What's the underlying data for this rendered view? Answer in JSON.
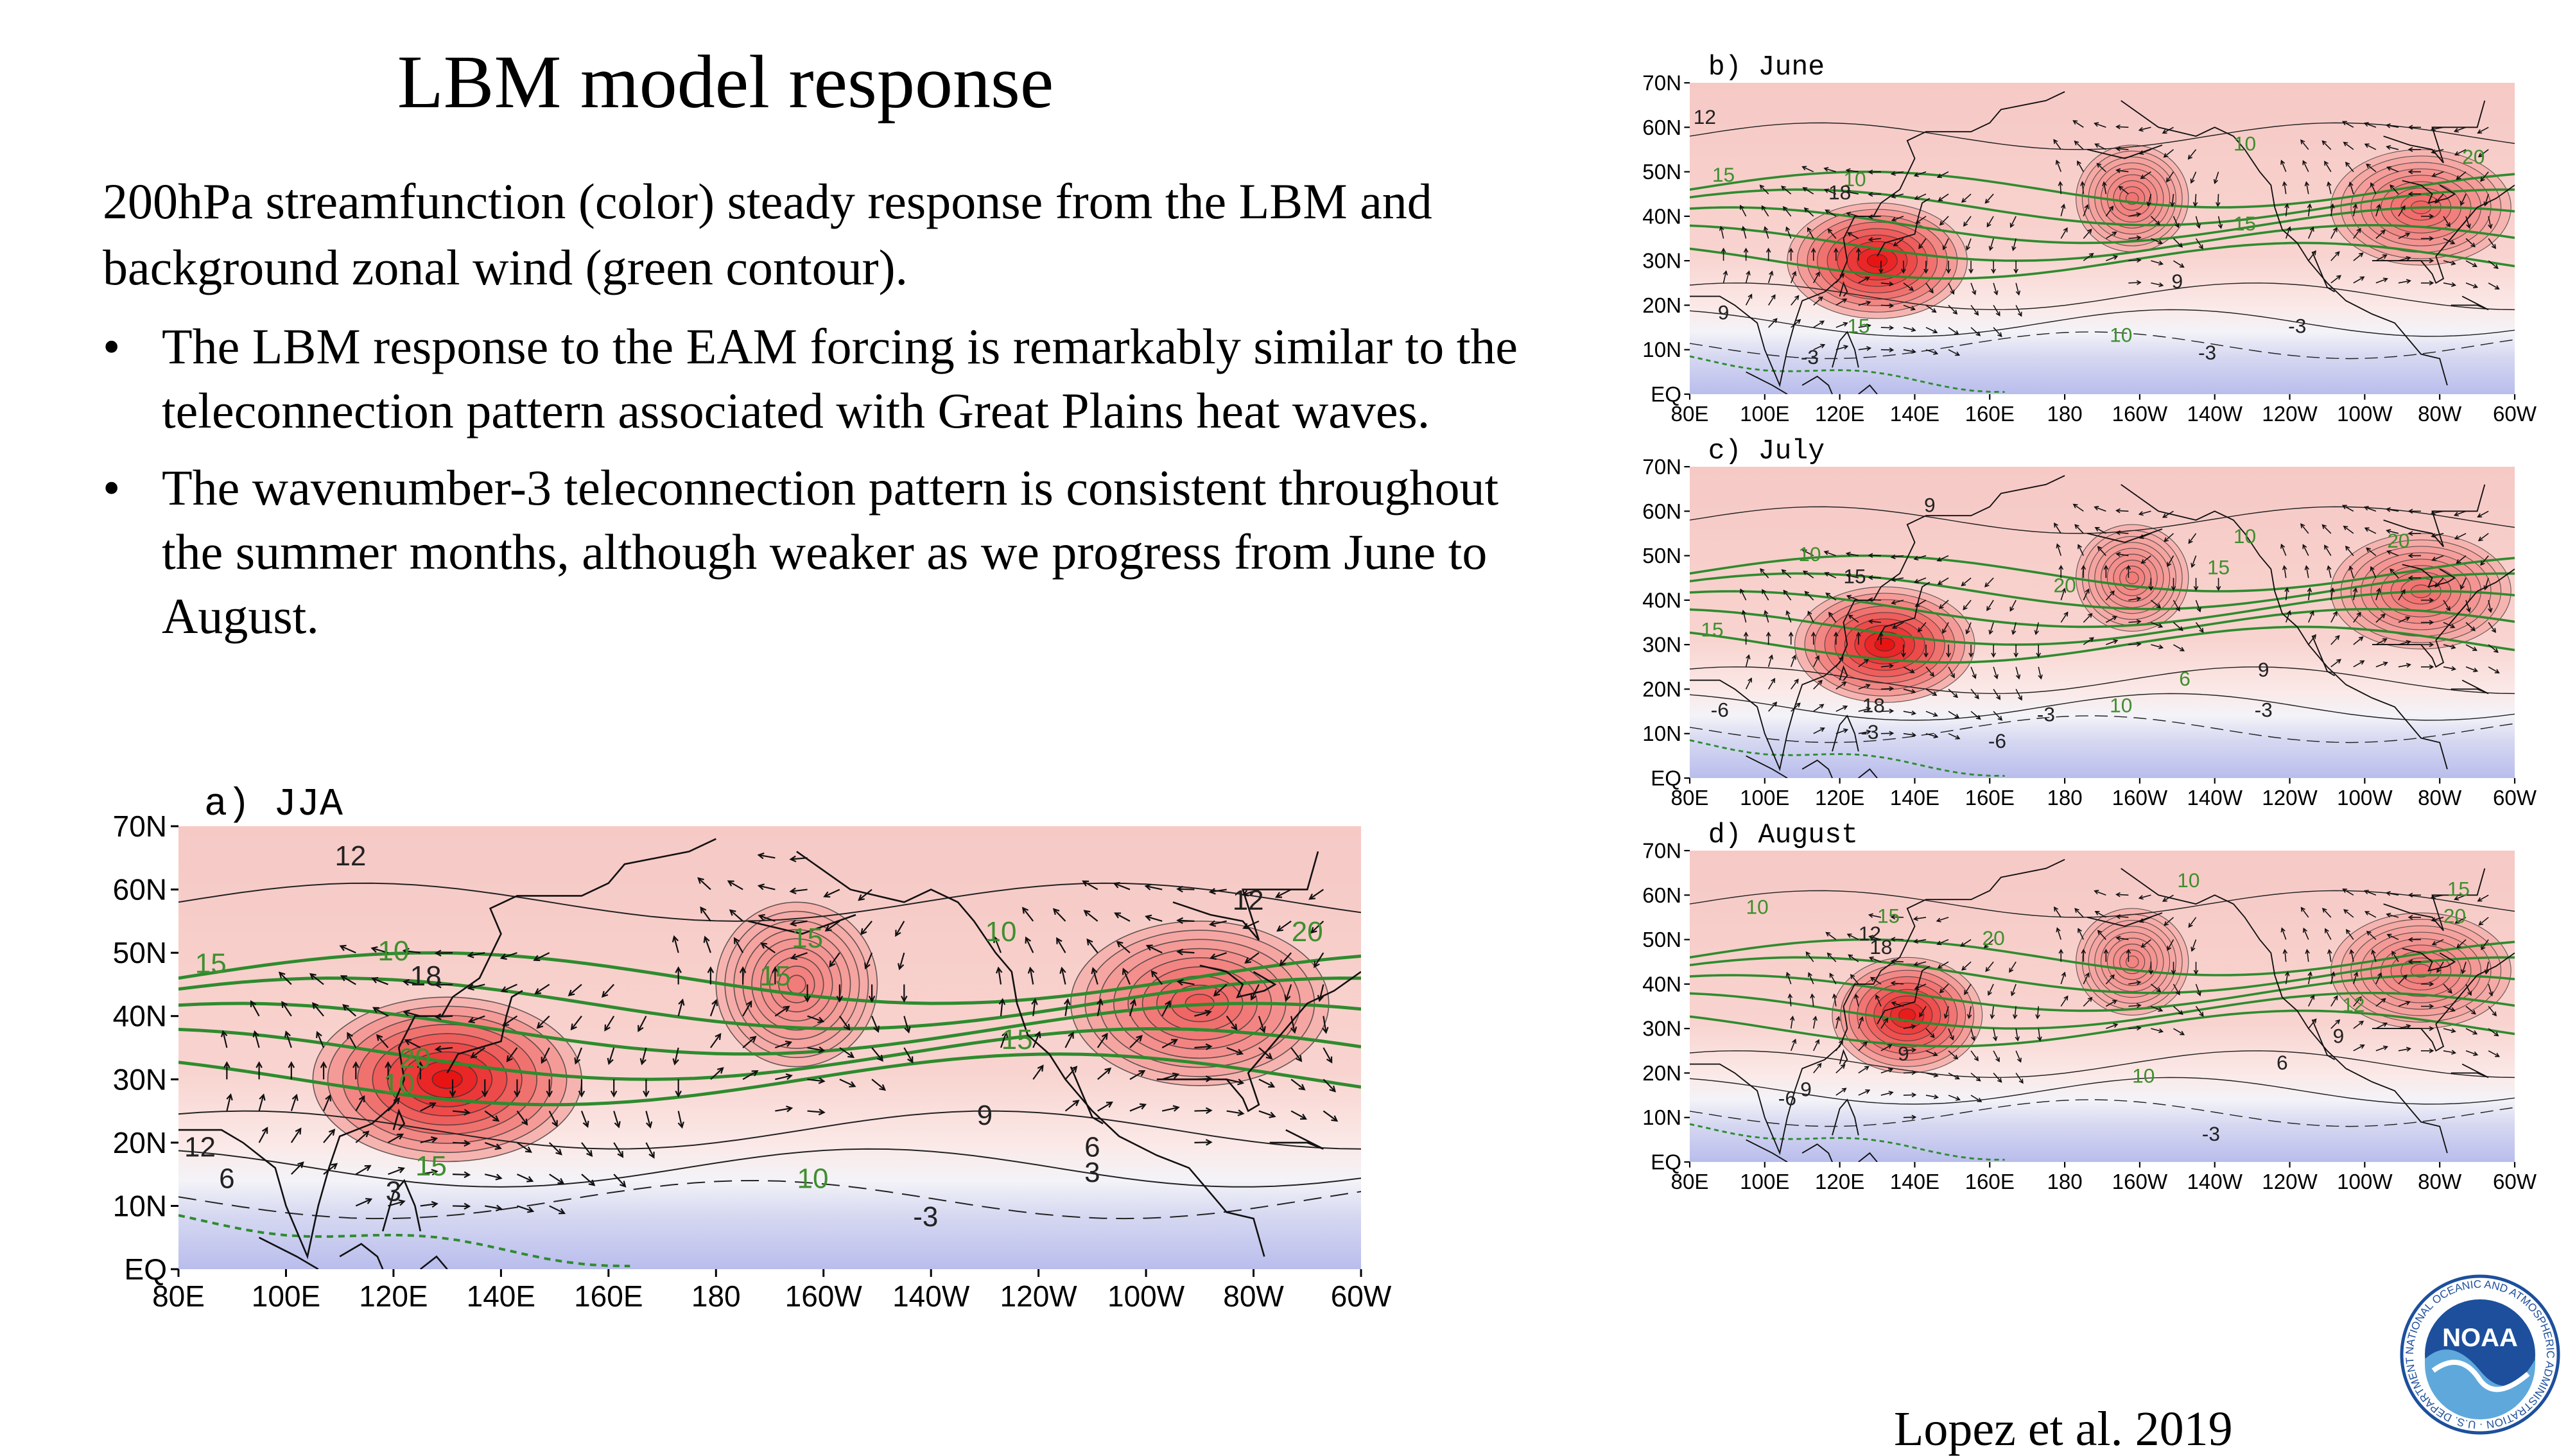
{
  "slide": {
    "title": "LBM model response",
    "lead": "200hPa streamfunction (color) steady response from the LBM and background zonal wind (green contour).",
    "bullets": [
      "The LBM response to the EAM forcing is remarkably similar to the teleconnection pattern associated with Great Plains heat waves.",
      "The wavenumber-3 teleconnection pattern is consistent throughout the summer months, although weaker as we progress from June to August."
    ],
    "bullet_glyph": "•",
    "citation": "Lopez et al. 2019",
    "logo": {
      "text": "NOAA",
      "ring_text": "NATIONAL OCEANIC AND ATMOSPHERIC ADMINISTRATION · U.S. DEPARTMENT OF COMMERCE ·",
      "icon": "noaa-logo-icon",
      "colors": [
        "#1d4f9c",
        "#5fa8dc",
        "#ffffff"
      ]
    }
  },
  "chart_data": [
    {
      "id": "a",
      "type": "heatmap",
      "label": "a) JJA",
      "x_ticks": [
        "80E",
        "100E",
        "120E",
        "140E",
        "160E",
        "180",
        "160W",
        "140W",
        "120W",
        "100W",
        "80W",
        "60W"
      ],
      "y_ticks": [
        "70N",
        "60N",
        "50N",
        "40N",
        "30N",
        "20N",
        "10N",
        "EQ"
      ],
      "xlim": [
        80,
        300
      ],
      "ylim": [
        0,
        70
      ],
      "streamfunction_centers": [
        {
          "lon": 130,
          "lat": 30,
          "amp": 1.0,
          "rx": 25,
          "ry": 13
        },
        {
          "lon": 195,
          "lat": 45,
          "amp": 0.35,
          "rx": 15,
          "ry": 13
        },
        {
          "lon": 270,
          "lat": 42,
          "amp": 0.55,
          "rx": 24,
          "ry": 13
        }
      ],
      "contour_labels": [
        {
          "text": "12",
          "lon": 112,
          "lat": 65,
          "wind": false
        },
        {
          "text": "15",
          "lon": 86,
          "lat": 48,
          "wind": true
        },
        {
          "text": "10",
          "lon": 120,
          "lat": 50,
          "wind": true
        },
        {
          "text": "18",
          "lon": 126,
          "lat": 46,
          "wind": false
        },
        {
          "text": "20",
          "lon": 124,
          "lat": 33,
          "wind": true
        },
        {
          "text": "10",
          "lon": 121,
          "lat": 29,
          "wind": true
        },
        {
          "text": "15",
          "lon": 127,
          "lat": 16,
          "wind": true
        },
        {
          "text": "12",
          "lon": 84,
          "lat": 19,
          "wind": false
        },
        {
          "text": "6",
          "lon": 89,
          "lat": 14,
          "wind": false
        },
        {
          "text": "3",
          "lon": 120,
          "lat": 12,
          "wind": false
        },
        {
          "text": "15",
          "lon": 197,
          "lat": 52,
          "wind": true
        },
        {
          "text": "15",
          "lon": 191,
          "lat": 46,
          "wind": true
        },
        {
          "text": "10",
          "lon": 233,
          "lat": 53,
          "wind": true
        },
        {
          "text": "15",
          "lon": 236,
          "lat": 36,
          "wind": true
        },
        {
          "text": "9",
          "lon": 230,
          "lat": 24,
          "wind": false
        },
        {
          "text": "6",
          "lon": 250,
          "lat": 19,
          "wind": false
        },
        {
          "text": "3",
          "lon": 250,
          "lat": 15,
          "wind": false
        },
        {
          "text": "10",
          "lon": 198,
          "lat": 14,
          "wind": true
        },
        {
          "text": "-3",
          "lon": 219,
          "lat": 8,
          "wind": false
        },
        {
          "text": "12",
          "lon": 279,
          "lat": 58,
          "wind": false
        },
        {
          "text": "20",
          "lon": 290,
          "lat": 53,
          "wind": true
        }
      ]
    },
    {
      "id": "b",
      "type": "heatmap",
      "label": "b) June",
      "x_ticks": [
        "80E",
        "100E",
        "120E",
        "140E",
        "160E",
        "180",
        "160W",
        "140W",
        "120W",
        "100W",
        "80W",
        "60W"
      ],
      "y_ticks": [
        "70N",
        "60N",
        "50N",
        "40N",
        "30N",
        "20N",
        "10N",
        "EQ"
      ],
      "xlim": [
        80,
        300
      ],
      "ylim": [
        0,
        70
      ],
      "streamfunction_centers": [
        {
          "lon": 130,
          "lat": 30,
          "amp": 1.0,
          "rx": 24,
          "ry": 13
        },
        {
          "lon": 198,
          "lat": 44,
          "amp": 0.4,
          "rx": 15,
          "ry": 12
        },
        {
          "lon": 275,
          "lat": 42,
          "amp": 0.5,
          "rx": 24,
          "ry": 13
        }
      ],
      "contour_labels": [
        {
          "text": "12",
          "lon": 84,
          "lat": 62,
          "wind": false
        },
        {
          "text": "15",
          "lon": 89,
          "lat": 49,
          "wind": true
        },
        {
          "text": "10",
          "lon": 124,
          "lat": 48,
          "wind": true
        },
        {
          "text": "18",
          "lon": 120,
          "lat": 45,
          "wind": false
        },
        {
          "text": "9",
          "lon": 89,
          "lat": 18,
          "wind": false
        },
        {
          "text": "15",
          "lon": 125,
          "lat": 15,
          "wind": true
        },
        {
          "text": "-3",
          "lon": 112,
          "lat": 8,
          "wind": false
        },
        {
          "text": "10",
          "lon": 195,
          "lat": 13,
          "wind": true
        },
        {
          "text": "9",
          "lon": 210,
          "lat": 25,
          "wind": false
        },
        {
          "text": "-3",
          "lon": 218,
          "lat": 9,
          "wind": false
        },
        {
          "text": "-3",
          "lon": 242,
          "lat": 15,
          "wind": false
        },
        {
          "text": "10",
          "lon": 228,
          "lat": 56,
          "wind": true
        },
        {
          "text": "15",
          "lon": 228,
          "lat": 38,
          "wind": true
        },
        {
          "text": "20",
          "lon": 289,
          "lat": 53,
          "wind": true
        }
      ]
    },
    {
      "id": "c",
      "type": "heatmap",
      "label": "c) July",
      "x_ticks": [
        "80E",
        "100E",
        "120E",
        "140E",
        "160E",
        "180",
        "160W",
        "140W",
        "120W",
        "100W",
        "80W",
        "60W"
      ],
      "y_ticks": [
        "70N",
        "60N",
        "50N",
        "40N",
        "30N",
        "20N",
        "10N",
        "EQ"
      ],
      "xlim": [
        80,
        300
      ],
      "ylim": [
        0,
        70
      ],
      "streamfunction_centers": [
        {
          "lon": 132,
          "lat": 30,
          "amp": 1.0,
          "rx": 24,
          "ry": 13
        },
        {
          "lon": 198,
          "lat": 45,
          "amp": 0.35,
          "rx": 15,
          "ry": 12
        },
        {
          "lon": 275,
          "lat": 42,
          "amp": 0.45,
          "rx": 24,
          "ry": 13
        }
      ],
      "contour_labels": [
        {
          "text": "9",
          "lon": 144,
          "lat": 61,
          "wind": false
        },
        {
          "text": "10",
          "lon": 112,
          "lat": 50,
          "wind": true
        },
        {
          "text": "15",
          "lon": 124,
          "lat": 45,
          "wind": false
        },
        {
          "text": "15",
          "lon": 86,
          "lat": 33,
          "wind": true
        },
        {
          "text": "18",
          "lon": 129,
          "lat": 16,
          "wind": false
        },
        {
          "text": "-6",
          "lon": 88,
          "lat": 15,
          "wind": false
        },
        {
          "text": "-3",
          "lon": 128,
          "lat": 10,
          "wind": false
        },
        {
          "text": "-6",
          "lon": 162,
          "lat": 8,
          "wind": false
        },
        {
          "text": "-3",
          "lon": 175,
          "lat": 14,
          "wind": false
        },
        {
          "text": "20",
          "lon": 180,
          "lat": 43,
          "wind": true
        },
        {
          "text": "10",
          "lon": 195,
          "lat": 16,
          "wind": true
        },
        {
          "text": "6",
          "lon": 212,
          "lat": 22,
          "wind": true
        },
        {
          "text": "9",
          "lon": 233,
          "lat": 24,
          "wind": false
        },
        {
          "text": "-3",
          "lon": 233,
          "lat": 15,
          "wind": false
        },
        {
          "text": "15",
          "lon": 221,
          "lat": 47,
          "wind": true
        },
        {
          "text": "10",
          "lon": 228,
          "lat": 54,
          "wind": true
        },
        {
          "text": "20",
          "lon": 269,
          "lat": 53,
          "wind": true
        }
      ]
    },
    {
      "id": "d",
      "type": "heatmap",
      "label": "d) August",
      "x_ticks": [
        "80E",
        "100E",
        "120E",
        "140E",
        "160E",
        "180",
        "160W",
        "140W",
        "120W",
        "100W",
        "80W",
        "60W"
      ],
      "y_ticks": [
        "70N",
        "60N",
        "50N",
        "40N",
        "30N",
        "20N",
        "10N",
        "EQ"
      ],
      "xlim": [
        80,
        300
      ],
      "ylim": [
        0,
        70
      ],
      "streamfunction_centers": [
        {
          "lon": 138,
          "lat": 33,
          "amp": 0.95,
          "rx": 20,
          "ry": 13
        },
        {
          "lon": 198,
          "lat": 45,
          "amp": 0.3,
          "rx": 15,
          "ry": 12
        },
        {
          "lon": 275,
          "lat": 43,
          "amp": 0.4,
          "rx": 24,
          "ry": 13
        }
      ],
      "contour_labels": [
        {
          "text": "10",
          "lon": 98,
          "lat": 57,
          "wind": true
        },
        {
          "text": "12",
          "lon": 128,
          "lat": 51,
          "wind": false
        },
        {
          "text": "15",
          "lon": 133,
          "lat": 55,
          "wind": true
        },
        {
          "text": "18",
          "lon": 131,
          "lat": 48,
          "wind": false
        },
        {
          "text": "20",
          "lon": 161,
          "lat": 50,
          "wind": true
        },
        {
          "text": "9",
          "lon": 137,
          "lat": 24,
          "wind": false
        },
        {
          "text": "-6",
          "lon": 106,
          "lat": 14,
          "wind": false
        },
        {
          "text": "9",
          "lon": 111,
          "lat": 16,
          "wind": false
        },
        {
          "text": "-3",
          "lon": 219,
          "lat": 6,
          "wind": false
        },
        {
          "text": "6",
          "lon": 238,
          "lat": 22,
          "wind": false
        },
        {
          "text": "9",
          "lon": 253,
          "lat": 28,
          "wind": false
        },
        {
          "text": "12",
          "lon": 257,
          "lat": 35,
          "wind": true
        },
        {
          "text": "10",
          "lon": 201,
          "lat": 19,
          "wind": true
        },
        {
          "text": "10",
          "lon": 213,
          "lat": 63,
          "wind": true
        },
        {
          "text": "15",
          "lon": 285,
          "lat": 61,
          "wind": true
        },
        {
          "text": "20",
          "lon": 284,
          "lat": 55,
          "wind": true
        }
      ]
    }
  ]
}
